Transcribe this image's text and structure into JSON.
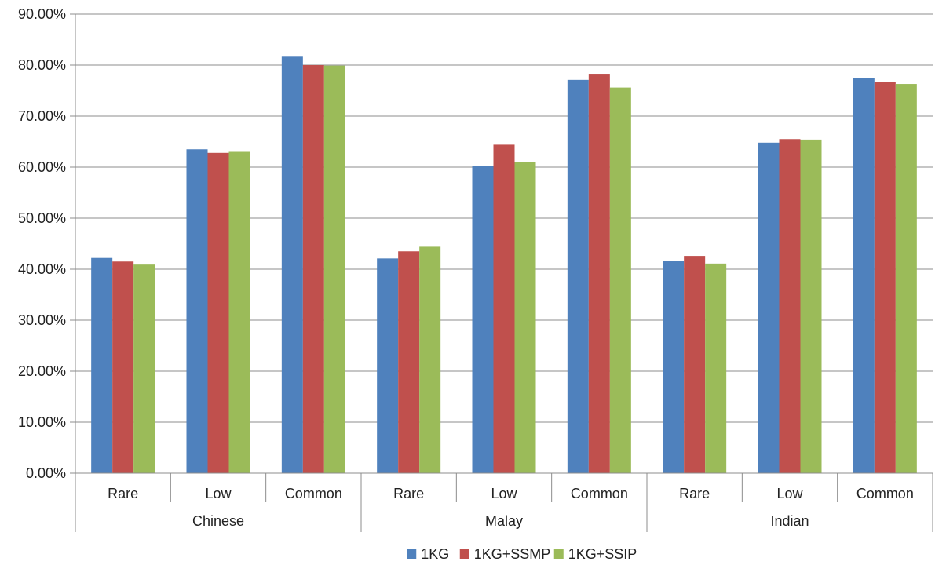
{
  "chart_data": {
    "type": "bar",
    "title": "",
    "xlabel": "",
    "ylabel": "",
    "ylim": [
      0,
      90
    ],
    "yticks": [
      0,
      10,
      20,
      30,
      40,
      50,
      60,
      70,
      80,
      90
    ],
    "ytick_labels": [
      "0.00%",
      "10.00%",
      "20.00%",
      "30.00%",
      "40.00%",
      "50.00%",
      "60.00%",
      "70.00%",
      "80.00%",
      "90.00%"
    ],
    "grid": true,
    "legend_position": "bottom",
    "groups": [
      {
        "name": "Chinese",
        "categories": [
          "Rare",
          "Low",
          "Common"
        ]
      },
      {
        "name": "Malay",
        "categories": [
          "Rare",
          "Low",
          "Common"
        ]
      },
      {
        "name": "Indian",
        "categories": [
          "Rare",
          "Low",
          "Common"
        ]
      }
    ],
    "series": [
      {
        "name": "1KG",
        "color": "#4f81bd",
        "values": [
          42.2,
          63.5,
          81.8,
          42.1,
          60.3,
          77.1,
          41.6,
          64.8,
          77.5
        ]
      },
      {
        "name": "1KG+SSMP",
        "color": "#c0504d",
        "values": [
          41.5,
          62.8,
          80.0,
          43.5,
          64.4,
          78.3,
          42.6,
          65.5,
          76.7
        ]
      },
      {
        "name": "1KG+SSIP",
        "color": "#9bbb59",
        "values": [
          40.9,
          63.0,
          79.9,
          44.4,
          61.0,
          75.6,
          41.1,
          65.4,
          76.3
        ]
      }
    ]
  }
}
